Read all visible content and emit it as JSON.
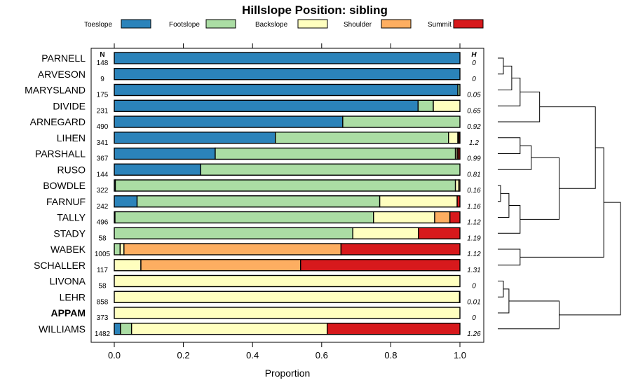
{
  "chart_data": {
    "type": "bar",
    "orientation": "horizontal-stacked",
    "title": "Hillslope Position: sibling",
    "xlabel": "Proportion",
    "xlim": [
      0,
      1
    ],
    "xticks": [
      0.0,
      0.2,
      0.4,
      0.6,
      0.8,
      1.0
    ],
    "xtick_labels": [
      "0.0",
      "0.2",
      "0.4",
      "0.6",
      "0.8",
      "1.0"
    ],
    "legend_placement": "top",
    "n_header": "N",
    "h_header": "H",
    "series": [
      {
        "name": "Toeslope",
        "color": "#2b83ba"
      },
      {
        "name": "Footslope",
        "color": "#abdda4"
      },
      {
        "name": "Backslope",
        "color": "#ffffbf"
      },
      {
        "name": "Shoulder",
        "color": "#fdae61"
      },
      {
        "name": "Summit",
        "color": "#d7191c"
      }
    ],
    "rows": [
      {
        "label": "PARNELL",
        "n": "148",
        "h": "0",
        "bold": false,
        "values": [
          1.0,
          0,
          0,
          0,
          0
        ]
      },
      {
        "label": "ARVESON",
        "n": "9",
        "h": "0",
        "bold": false,
        "values": [
          1.0,
          0,
          0,
          0,
          0
        ]
      },
      {
        "label": "MARYSLAND",
        "n": "175",
        "h": "0.05",
        "bold": false,
        "values": [
          0.994,
          0.006,
          0,
          0,
          0
        ]
      },
      {
        "label": "DIVIDE",
        "n": "231",
        "h": "0.65",
        "bold": false,
        "values": [
          0.879,
          0.044,
          0.077,
          0,
          0
        ]
      },
      {
        "label": "ARNEGARD",
        "n": "490",
        "h": "0.92",
        "bold": false,
        "values": [
          0.661,
          0.339,
          0,
          0,
          0
        ]
      },
      {
        "label": "LIHEN",
        "n": "341",
        "h": "1.2",
        "bold": false,
        "values": [
          0.466,
          0.501,
          0.027,
          0.003,
          0.003
        ]
      },
      {
        "label": "PARSHALL",
        "n": "367",
        "h": "0.99",
        "bold": false,
        "values": [
          0.292,
          0.695,
          0.005,
          0.003,
          0.005
        ]
      },
      {
        "label": "RUSO",
        "n": "144",
        "h": "0.81",
        "bold": false,
        "values": [
          0.25,
          0.75,
          0,
          0,
          0
        ]
      },
      {
        "label": "BOWDLE",
        "n": "322",
        "h": "0.16",
        "bold": false,
        "values": [
          0.003,
          0.984,
          0.01,
          0.003,
          0
        ]
      },
      {
        "label": "FARNUF",
        "n": "242",
        "h": "1.16",
        "bold": false,
        "values": [
          0.066,
          0.702,
          0.224,
          0,
          0.008
        ]
      },
      {
        "label": "TALLY",
        "n": "496",
        "h": "1.12",
        "bold": false,
        "values": [
          0.002,
          0.748,
          0.177,
          0.044,
          0.029
        ]
      },
      {
        "label": "STADY",
        "n": "58",
        "h": "1.19",
        "bold": false,
        "values": [
          0,
          0.69,
          0.19,
          0,
          0.12
        ]
      },
      {
        "label": "WABEK",
        "n": "1005",
        "h": "1.12",
        "bold": false,
        "values": [
          0,
          0.017,
          0.011,
          0.628,
          0.344
        ]
      },
      {
        "label": "SCHALLER",
        "n": "117",
        "h": "1.31",
        "bold": false,
        "values": [
          0,
          0,
          0.077,
          0.462,
          0.461
        ]
      },
      {
        "label": "LIVONA",
        "n": "58",
        "h": "0",
        "bold": false,
        "values": [
          0,
          0,
          1.0,
          0,
          0
        ]
      },
      {
        "label": "LEHR",
        "n": "858",
        "h": "0.01",
        "bold": false,
        "values": [
          0,
          0,
          0.999,
          0,
          0.001
        ]
      },
      {
        "label": "APPAM",
        "n": "373",
        "h": "0",
        "bold": true,
        "values": [
          0,
          0,
          1.0,
          0,
          0
        ]
      },
      {
        "label": "WILLIAMS",
        "n": "1482",
        "h": "1.26",
        "bold": false,
        "values": [
          0.018,
          0.032,
          0.566,
          0,
          0.384
        ]
      }
    ],
    "dendrogram": {
      "leaf_order": [
        "PARNELL",
        "ARVESON",
        "MARYSLAND",
        "DIVIDE",
        "ARNEGARD",
        "LIHEN",
        "PARSHALL",
        "RUSO",
        "BOWDLE",
        "FARNUF",
        "TALLY",
        "STADY",
        "WABEK",
        "SCHALLER",
        "LIVONA",
        "LEHR",
        "APPAM",
        "WILLIAMS"
      ],
      "merges": [
        {
          "a": 0,
          "b": 1,
          "height": 0.02
        },
        {
          "a": "m0",
          "b": 2,
          "height": 0.05
        },
        {
          "a": "m1",
          "b": 3,
          "height": 0.08
        },
        {
          "a": "m2",
          "b": 4,
          "height": 0.15
        },
        {
          "a": 5,
          "b": 6,
          "height": 0.08
        },
        {
          "a": "m4",
          "b": 7,
          "height": 0.12
        },
        {
          "a": 8,
          "b": 9,
          "height": 0.01
        },
        {
          "a": "m6",
          "b": 10,
          "height": 0.04
        },
        {
          "a": "m7",
          "b": 11,
          "height": 0.08
        },
        {
          "a": "m5",
          "b": "m8",
          "height": 0.22
        },
        {
          "a": 12,
          "b": 13,
          "height": 0.08
        },
        {
          "a": 14,
          "b": 15,
          "height": 0.02
        },
        {
          "a": "m11",
          "b": 16,
          "height": 0.04
        },
        {
          "a": "m12",
          "b": 17,
          "height": 0.22
        },
        {
          "a": "m3",
          "b": "m9",
          "height": 0.35
        },
        {
          "a": "m14",
          "b": "m10",
          "height": 0.38
        },
        {
          "a": "m15",
          "b": "m13",
          "height": 0.44
        }
      ]
    }
  }
}
